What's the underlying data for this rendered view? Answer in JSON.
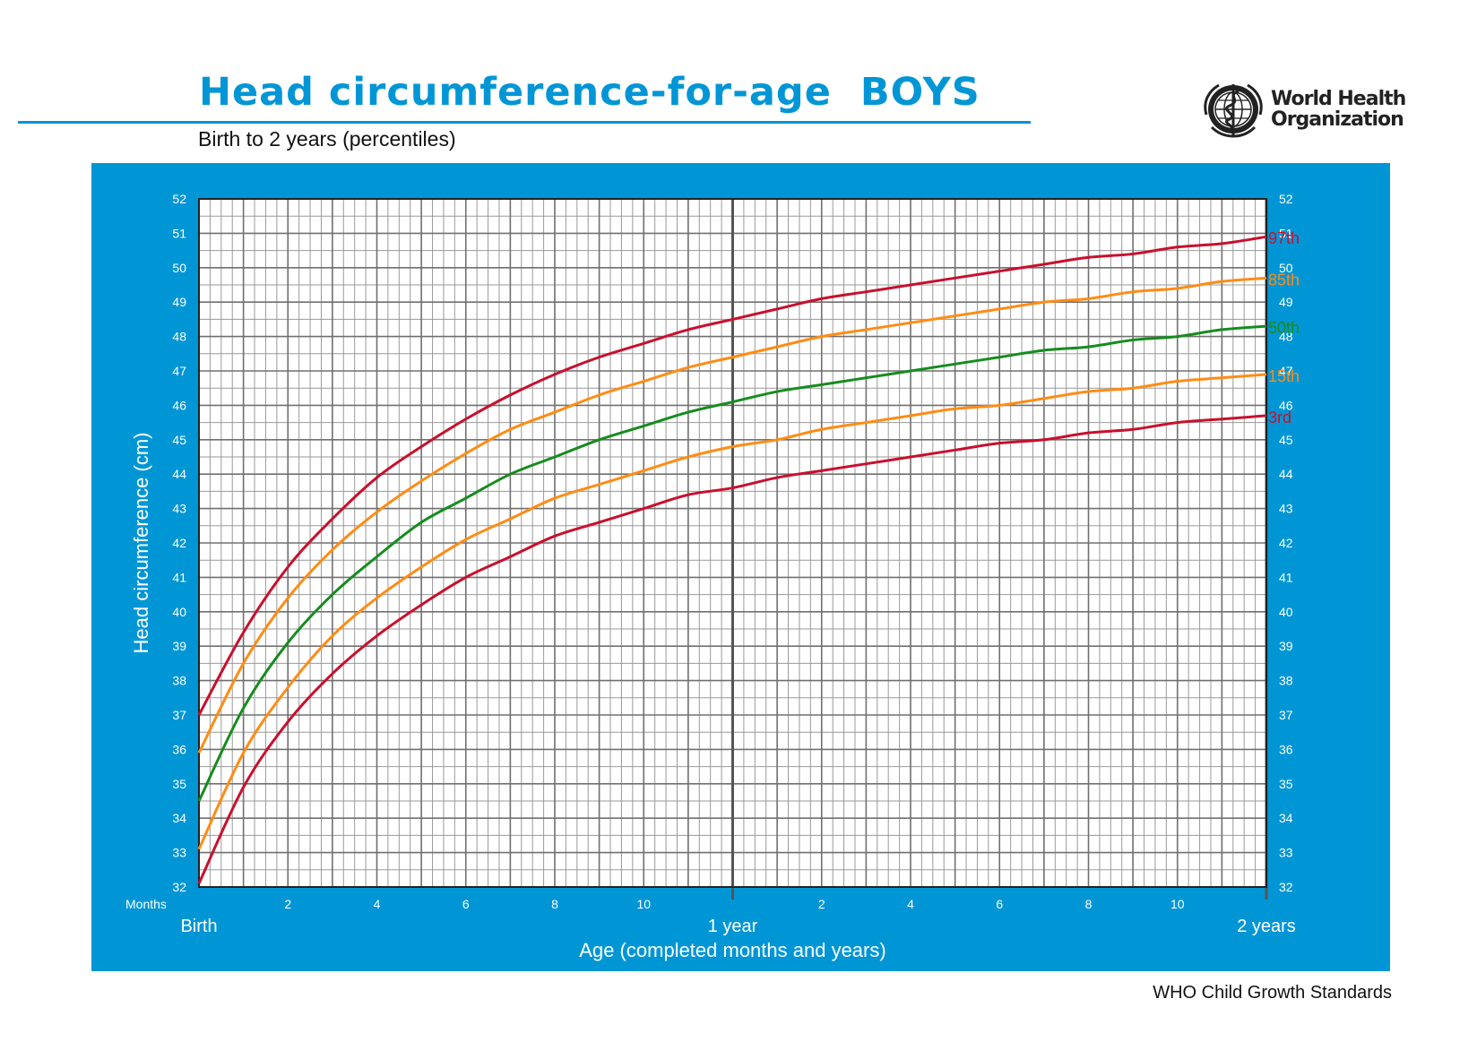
{
  "header": {
    "title": "Head circumference-for-age  BOYS",
    "subtitle": "Birth to 2 years (percentiles)",
    "org_line1": "World Health",
    "org_line2": "Organization"
  },
  "footer": {
    "text": "WHO Child Growth Standards"
  },
  "colors": {
    "brand_blue": "#0096d6",
    "red": "#c8102e",
    "orange": "#ff8c14",
    "green": "#168c1e",
    "grid_minor": "#9a9a9a",
    "grid_major": "#707070"
  },
  "chart_data": {
    "type": "line",
    "ylabel": "Head circumference (cm)",
    "xlabel": "Age (completed months and years)",
    "x_units_label": "Months",
    "ylim": [
      32,
      52
    ],
    "xlim": [
      0,
      24
    ],
    "y_ticks": [
      32,
      33,
      34,
      35,
      36,
      37,
      38,
      39,
      40,
      41,
      42,
      43,
      44,
      45,
      46,
      47,
      48,
      49,
      50,
      51,
      52
    ],
    "x_month_ticks": [
      {
        "month": 2,
        "label": "2"
      },
      {
        "month": 4,
        "label": "4"
      },
      {
        "month": 6,
        "label": "6"
      },
      {
        "month": 8,
        "label": "8"
      },
      {
        "month": 10,
        "label": "10"
      },
      {
        "month": 14,
        "label": "2"
      },
      {
        "month": 16,
        "label": "4"
      },
      {
        "month": 18,
        "label": "6"
      },
      {
        "month": 20,
        "label": "8"
      },
      {
        "month": 22,
        "label": "10"
      }
    ],
    "x_major_labels": [
      {
        "month": 0,
        "label": "Birth"
      },
      {
        "month": 12,
        "label": "1 year"
      },
      {
        "month": 24,
        "label": "2 years"
      }
    ],
    "grid": true,
    "x": [
      0,
      1,
      2,
      3,
      4,
      5,
      6,
      7,
      8,
      9,
      10,
      11,
      12,
      13,
      14,
      15,
      16,
      17,
      18,
      19,
      20,
      21,
      22,
      23,
      24
    ],
    "series": [
      {
        "name": "97th",
        "color": "red",
        "values": [
          37.0,
          39.4,
          41.3,
          42.7,
          43.9,
          44.8,
          45.6,
          46.3,
          46.9,
          47.4,
          47.8,
          48.2,
          48.5,
          48.8,
          49.1,
          49.3,
          49.5,
          49.7,
          49.9,
          50.1,
          50.3,
          50.4,
          50.6,
          50.7,
          50.9
        ]
      },
      {
        "name": "85th",
        "color": "orange",
        "values": [
          35.9,
          38.5,
          40.4,
          41.8,
          42.9,
          43.8,
          44.6,
          45.3,
          45.8,
          46.3,
          46.7,
          47.1,
          47.4,
          47.7,
          48.0,
          48.2,
          48.4,
          48.6,
          48.8,
          49.0,
          49.1,
          49.3,
          49.4,
          49.6,
          49.7
        ]
      },
      {
        "name": "50th",
        "color": "green",
        "values": [
          34.5,
          37.2,
          39.1,
          40.5,
          41.6,
          42.6,
          43.3,
          44.0,
          44.5,
          45.0,
          45.4,
          45.8,
          46.1,
          46.4,
          46.6,
          46.8,
          47.0,
          47.2,
          47.4,
          47.6,
          47.7,
          47.9,
          48.0,
          48.2,
          48.3
        ]
      },
      {
        "name": "15th",
        "color": "orange",
        "values": [
          33.1,
          35.9,
          37.8,
          39.3,
          40.4,
          41.3,
          42.1,
          42.7,
          43.3,
          43.7,
          44.1,
          44.5,
          44.8,
          45.0,
          45.3,
          45.5,
          45.7,
          45.9,
          46.0,
          46.2,
          46.4,
          46.5,
          46.7,
          46.8,
          46.9
        ]
      },
      {
        "name": "3rd",
        "color": "red",
        "values": [
          32.1,
          34.9,
          36.8,
          38.2,
          39.3,
          40.2,
          41.0,
          41.6,
          42.2,
          42.6,
          43.0,
          43.4,
          43.6,
          43.9,
          44.1,
          44.3,
          44.5,
          44.7,
          44.9,
          45.0,
          45.2,
          45.3,
          45.5,
          45.6,
          45.7
        ]
      }
    ]
  }
}
